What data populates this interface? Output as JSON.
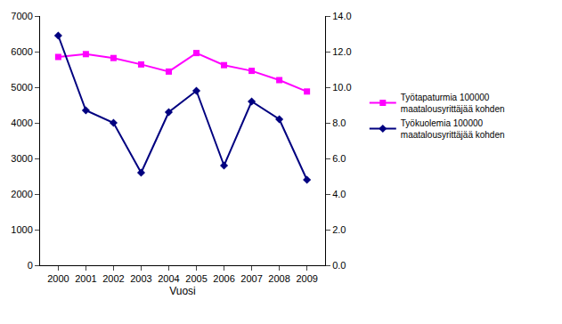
{
  "chart_data": {
    "type": "line",
    "x_label": "Vuosi",
    "categories": [
      "2000",
      "2001",
      "2002",
      "2003",
      "2004",
      "2005",
      "2006",
      "2007",
      "2008",
      "2009"
    ],
    "series": [
      {
        "name": "Työtapaturmia 100000 maatalousyrittäjää kohden",
        "color": "#ff00ff",
        "marker": "square",
        "values": [
          5850,
          5930,
          5820,
          5640,
          5440,
          5960,
          5620,
          5460,
          5200,
          4880
        ]
      },
      {
        "name": "Työkuolemia 100000 maatalousyrittäjää kohden",
        "color": "#000080",
        "marker": "diamond",
        "axis": "y2",
        "values": [
          12.9,
          8.7,
          8.0,
          5.2,
          8.6,
          9.8,
          5.6,
          9.2,
          8.2,
          4.8
        ]
      }
    ],
    "ylim": [
      0,
      7000
    ],
    "yticks": [
      0,
      1000,
      2000,
      3000,
      4000,
      5000,
      6000,
      7000
    ],
    "y2lim": [
      0,
      14
    ],
    "y2ticks": [
      {
        "value": 0,
        "label": "0.0"
      },
      {
        "value": 2,
        "label": "2.0"
      },
      {
        "value": 4,
        "label": "4.0"
      },
      {
        "value": 6,
        "label": "6.0"
      },
      {
        "value": 8,
        "label": "8.0"
      },
      {
        "value": 10,
        "label": "10.0"
      },
      {
        "value": 12,
        "label": "12.0"
      },
      {
        "value": 14,
        "label": "14.0"
      }
    ],
    "grid": false,
    "legend": "right"
  }
}
